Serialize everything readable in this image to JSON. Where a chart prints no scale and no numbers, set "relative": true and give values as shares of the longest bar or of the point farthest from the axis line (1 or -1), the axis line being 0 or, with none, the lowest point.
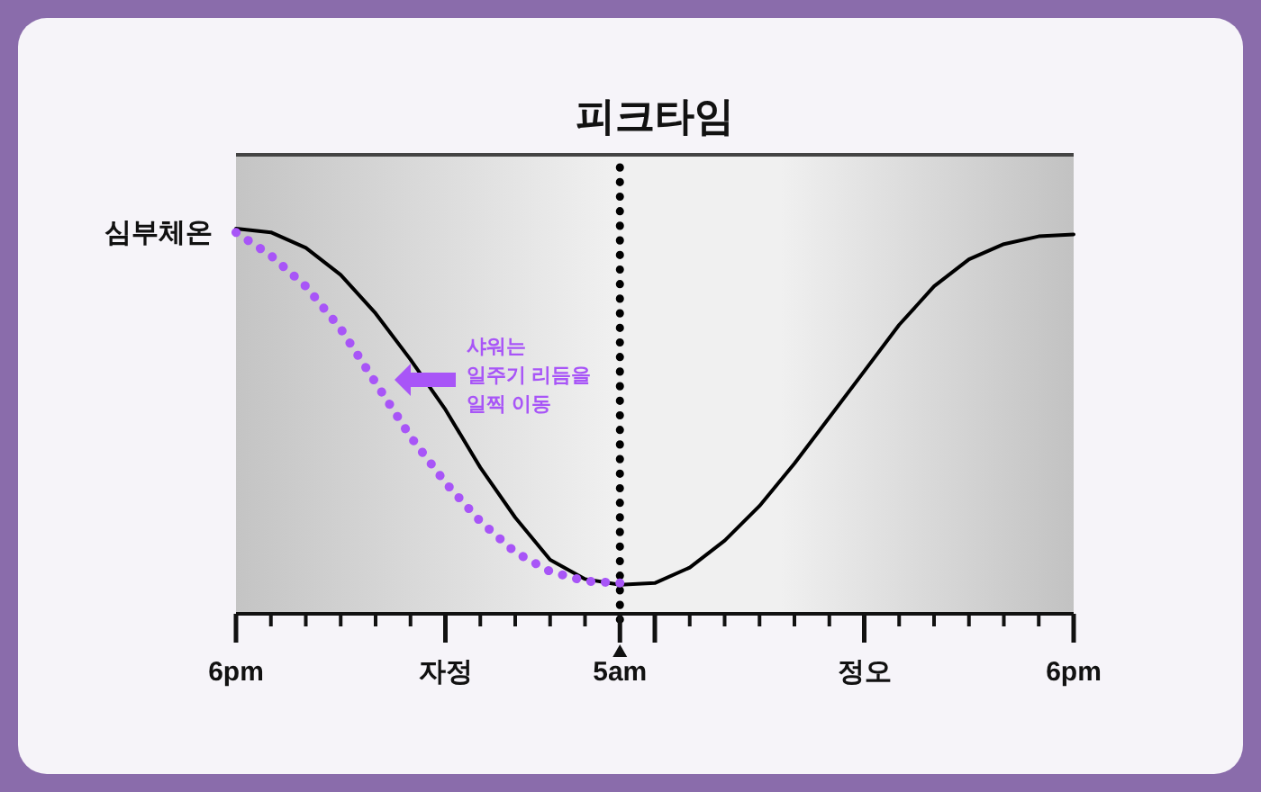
{
  "chart_data": {
    "type": "line",
    "title": "피크타임",
    "ylabel": "심부체온",
    "relative": true,
    "categories": [
      "6pm",
      null,
      null,
      null,
      null,
      null,
      "자정",
      null,
      null,
      null,
      null,
      "5am",
      null,
      null,
      null,
      null,
      null,
      null,
      "정오",
      null,
      null,
      null,
      null,
      null,
      "6pm"
    ],
    "series": [
      {
        "color": "#000000",
        "line_style": "solid",
        "values": [
          1.0,
          0.99,
          0.95,
          0.88,
          0.78,
          0.66,
          0.53,
          0.38,
          0.25,
          0.14,
          0.09,
          0.075,
          0.08,
          0.12,
          0.19,
          0.28,
          0.39,
          0.51,
          0.63,
          0.75,
          0.85,
          0.92,
          0.96,
          0.98,
          0.985
        ]
      },
      {
        "color": "#a855f7",
        "line_style": "dotted",
        "values": [
          0.99,
          0.93,
          0.85,
          0.74,
          0.6,
          0.46,
          0.34,
          0.24,
          0.16,
          0.11,
          0.085,
          0.08,
          null,
          null,
          null,
          null,
          null,
          null,
          null,
          null,
          null,
          null,
          null,
          null,
          null
        ]
      }
    ],
    "ref_lines": [
      {
        "axis": "x",
        "value": "5am",
        "color": "#000000",
        "line_style": "dotted"
      }
    ],
    "annotations": [
      "샤워는\n일주기 리듬을\n일찍 이동"
    ]
  }
}
